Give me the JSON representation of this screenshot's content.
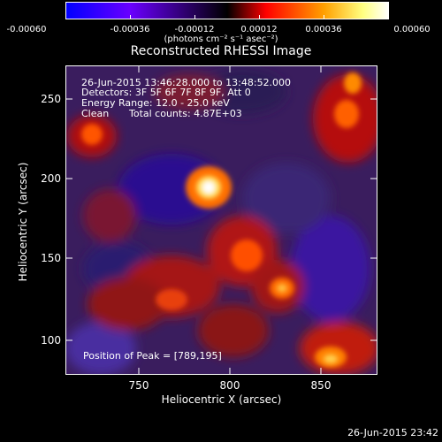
{
  "colorbar": {
    "tick_labels": [
      "-0.00060",
      "-0.00036",
      "-0.00012",
      "0.00012",
      "0.00036",
      "0.00060"
    ],
    "units": "(photons cm⁻² s⁻¹ asec⁻²)",
    "colors": [
      "#0000ff",
      "#6a00ff",
      "#000000",
      "#5a2a80",
      "#ff0000",
      "#ffa000",
      "#ffff80",
      "#ffffff"
    ]
  },
  "chart_data": {
    "type": "heatmap",
    "title": "Reconstructed RHESSI Image",
    "xlabel": "Heliocentric X (arcsec)",
    "ylabel": "Heliocentric Y (arcsec)",
    "xlim": [
      705,
      893
    ],
    "ylim": [
      78,
      269
    ],
    "x_ticks": [
      750,
      800,
      850
    ],
    "y_ticks": [
      100,
      150,
      200,
      250
    ],
    "colorbar_range": [
      -0.0006,
      0.0006
    ],
    "peak": {
      "x": 789,
      "y": 195
    },
    "annotations": {
      "time_range": "26-Jun-2015 13:46:28.000 to 13:48:52.000",
      "detectors": "Detectors: 3F 5F 6F 7F 8F 9F, Att 0",
      "energy": "Energy Range: 12.0 - 25.0 keV",
      "method": "Clean",
      "total_counts": "Total counts: 4.87E+03",
      "peak_label": "Position of Peak = [789,195]"
    }
  },
  "timestamp": "26-Jun-2015 23:42"
}
